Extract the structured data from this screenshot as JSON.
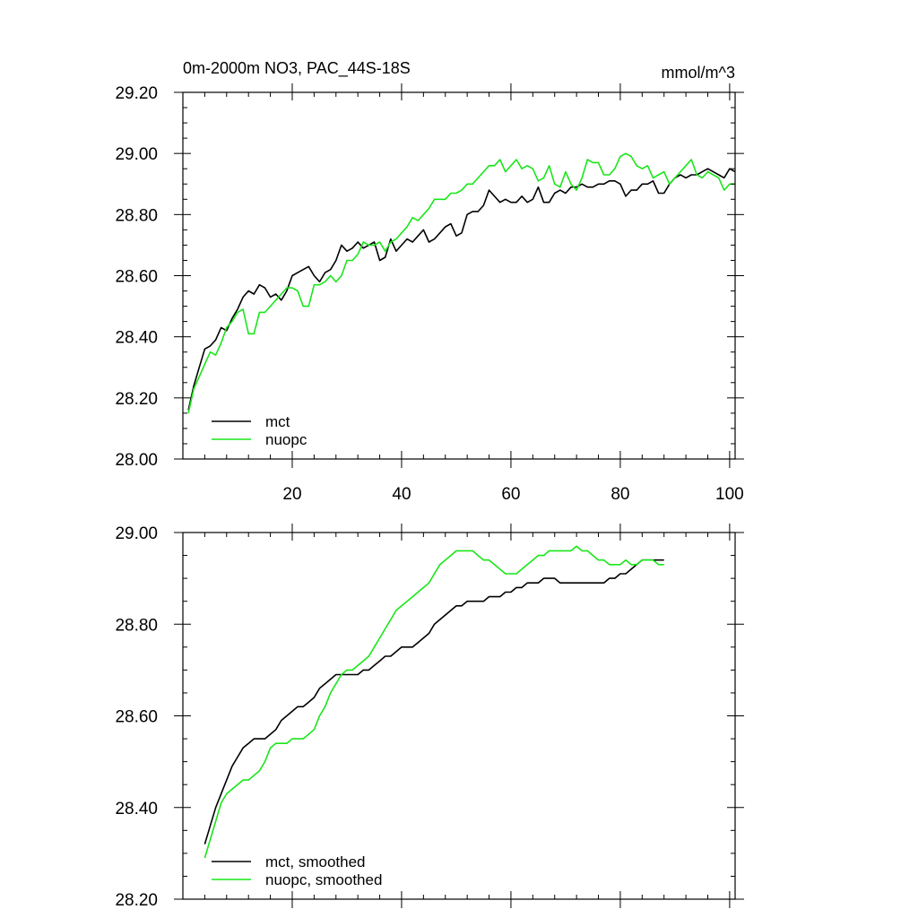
{
  "colors": {
    "mct": "#000000",
    "nuopc": "#19e619"
  },
  "chart_data": [
    {
      "type": "line",
      "title": "0m-2000m NO3, PAC_44S-18S",
      "units": "mmol/m^3",
      "xlabel": "",
      "ylabel": "",
      "xlim": [
        0,
        101
      ],
      "ylim": [
        28.0,
        29.2
      ],
      "xticks": [
        20,
        40,
        60,
        80,
        100
      ],
      "yticks": [
        "28.00",
        "28.20",
        "28.40",
        "28.60",
        "28.80",
        "29.00",
        "29.20"
      ],
      "legend": [
        "mct",
        "nuopc"
      ],
      "series": [
        {
          "name": "mct",
          "x_start": 1,
          "values": [
            28.16,
            28.24,
            28.3,
            28.36,
            28.37,
            28.39,
            28.43,
            28.42,
            28.46,
            28.49,
            28.53,
            28.55,
            28.54,
            28.57,
            28.56,
            28.53,
            28.54,
            28.52,
            28.55,
            28.6,
            28.61,
            28.62,
            28.63,
            28.6,
            28.58,
            28.61,
            28.62,
            28.65,
            28.7,
            28.68,
            28.69,
            28.71,
            28.69,
            28.7,
            28.71,
            28.65,
            28.66,
            28.72,
            28.68,
            28.7,
            28.72,
            28.71,
            28.73,
            28.75,
            28.71,
            28.72,
            28.74,
            28.76,
            28.77,
            28.73,
            28.74,
            28.8,
            28.81,
            28.81,
            28.83,
            28.88,
            28.86,
            28.84,
            28.85,
            28.84,
            28.84,
            28.86,
            28.84,
            28.85,
            28.89,
            28.84,
            28.84,
            28.87,
            28.88,
            28.87,
            28.89,
            28.89,
            28.9,
            28.89,
            28.89,
            28.9,
            28.9,
            28.91,
            28.91,
            28.9,
            28.86,
            28.88,
            28.88,
            28.9,
            28.9,
            28.91,
            28.87,
            28.87,
            28.9,
            28.92,
            28.93,
            28.92,
            28.93,
            28.93,
            28.94,
            28.95,
            28.94,
            28.93,
            28.92,
            28.95,
            28.94
          ]
        },
        {
          "name": "nuopc",
          "x_start": 1,
          "values": [
            28.15,
            28.23,
            28.27,
            28.31,
            28.35,
            28.34,
            28.38,
            28.43,
            28.45,
            28.48,
            28.49,
            28.41,
            28.41,
            28.48,
            28.48,
            28.5,
            28.52,
            28.54,
            28.56,
            28.56,
            28.55,
            28.5,
            28.5,
            28.57,
            28.57,
            28.58,
            28.6,
            28.58,
            28.6,
            28.65,
            28.65,
            28.67,
            28.71,
            28.7,
            28.7,
            28.71,
            28.68,
            28.71,
            28.72,
            28.74,
            28.76,
            28.79,
            28.78,
            28.8,
            28.82,
            28.85,
            28.85,
            28.85,
            28.87,
            28.87,
            28.88,
            28.9,
            28.9,
            28.92,
            28.94,
            28.96,
            28.96,
            28.98,
            28.94,
            28.96,
            28.98,
            28.95,
            28.96,
            28.95,
            28.91,
            28.92,
            28.96,
            28.9,
            28.89,
            28.94,
            28.9,
            28.88,
            28.92,
            28.98,
            28.97,
            28.97,
            28.93,
            28.93,
            28.95,
            28.99,
            29.0,
            28.99,
            28.96,
            28.95,
            28.96,
            28.92,
            28.93,
            28.94,
            28.9,
            28.92,
            28.94,
            28.96,
            28.98,
            28.93,
            28.92,
            28.94,
            28.93,
            28.92,
            28.88,
            28.9,
            28.9
          ]
        }
      ]
    },
    {
      "type": "line",
      "title": "",
      "xlabel": "",
      "ylabel": "",
      "xlim": [
        0,
        101
      ],
      "ylim": [
        28.2,
        29.0
      ],
      "xticks": [
        20,
        40,
        60,
        80,
        100
      ],
      "yticks": [
        "28.20",
        "28.40",
        "28.60",
        "28.80",
        "29.00"
      ],
      "legend": [
        "mct, smoothed",
        "nuopc, smoothed"
      ],
      "series": [
        {
          "name": "mct, smoothed",
          "x_start": 4,
          "values": [
            28.32,
            28.36,
            28.4,
            28.43,
            28.46,
            28.49,
            28.51,
            28.53,
            28.54,
            28.55,
            28.55,
            28.55,
            28.56,
            28.57,
            28.59,
            28.6,
            28.61,
            28.62,
            28.62,
            28.63,
            28.64,
            28.66,
            28.67,
            28.68,
            28.69,
            28.69,
            28.69,
            28.69,
            28.69,
            28.7,
            28.7,
            28.71,
            28.72,
            28.73,
            28.73,
            28.74,
            28.75,
            28.75,
            28.75,
            28.76,
            28.77,
            28.78,
            28.8,
            28.81,
            28.82,
            28.83,
            28.84,
            28.84,
            28.85,
            28.85,
            28.85,
            28.85,
            28.86,
            28.86,
            28.86,
            28.87,
            28.87,
            28.88,
            28.88,
            28.89,
            28.89,
            28.89,
            28.9,
            28.9,
            28.9,
            28.89,
            28.89,
            28.89,
            28.89,
            28.89,
            28.89,
            28.89,
            28.89,
            28.89,
            28.9,
            28.9,
            28.91,
            28.91,
            28.92,
            28.93,
            28.94,
            28.94,
            28.94,
            28.94,
            28.94
          ]
        },
        {
          "name": "nuopc, smoothed",
          "x_start": 4,
          "values": [
            28.29,
            28.33,
            28.37,
            28.41,
            28.43,
            28.44,
            28.45,
            28.46,
            28.46,
            28.47,
            28.48,
            28.5,
            28.53,
            28.54,
            28.54,
            28.54,
            28.55,
            28.55,
            28.55,
            28.56,
            28.57,
            28.6,
            28.62,
            28.65,
            28.67,
            28.69,
            28.7,
            28.7,
            28.71,
            28.72,
            28.73,
            28.75,
            28.77,
            28.79,
            28.81,
            28.83,
            28.84,
            28.85,
            28.86,
            28.87,
            28.88,
            28.89,
            28.91,
            28.93,
            28.94,
            28.95,
            28.96,
            28.96,
            28.96,
            28.96,
            28.95,
            28.94,
            28.94,
            28.93,
            28.92,
            28.91,
            28.91,
            28.91,
            28.92,
            28.93,
            28.94,
            28.95,
            28.95,
            28.96,
            28.96,
            28.96,
            28.96,
            28.96,
            28.97,
            28.96,
            28.96,
            28.95,
            28.94,
            28.94,
            28.93,
            28.93,
            28.93,
            28.94,
            28.93,
            28.93,
            28.94,
            28.94,
            28.94,
            28.93,
            28.93
          ]
        }
      ]
    }
  ]
}
